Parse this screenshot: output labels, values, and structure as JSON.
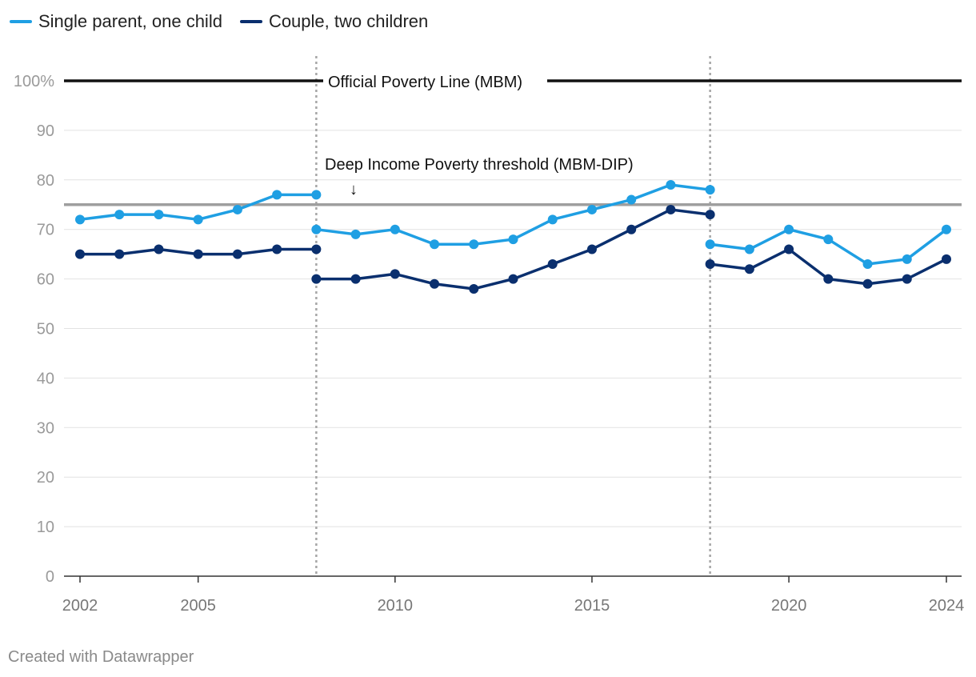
{
  "chart_data": {
    "type": "line",
    "x": [
      2002,
      2003,
      2004,
      2005,
      2006,
      2007,
      2008,
      2009,
      2010,
      2011,
      2012,
      2013,
      2014,
      2015,
      2016,
      2017,
      2018,
      2019,
      2020,
      2021,
      2022,
      2023,
      2024
    ],
    "series": [
      {
        "name": "Single parent, one child",
        "color": "#1f9fe3",
        "segments": [
          {
            "x": [
              2002,
              2003,
              2004,
              2005,
              2006,
              2007,
              2008
            ],
            "values": [
              72,
              73,
              73,
              72,
              74,
              77,
              77
            ]
          },
          {
            "x": [
              2008,
              2009,
              2010,
              2011,
              2012,
              2013,
              2014,
              2015,
              2016,
              2017,
              2018
            ],
            "values": [
              70,
              69,
              70,
              67,
              67,
              68,
              72,
              74,
              76,
              79,
              78
            ]
          },
          {
            "x": [
              2018,
              2019,
              2020,
              2021,
              2022,
              2023,
              2024
            ],
            "values": [
              67,
              66,
              70,
              68,
              63,
              64,
              70
            ]
          }
        ]
      },
      {
        "name": "Couple, two children",
        "color": "#0a2f6e",
        "segments": [
          {
            "x": [
              2002,
              2003,
              2004,
              2005,
              2006,
              2007,
              2008
            ],
            "values": [
              65,
              65,
              66,
              65,
              65,
              66,
              66
            ]
          },
          {
            "x": [
              2008,
              2009,
              2010,
              2011,
              2012,
              2013,
              2014,
              2015,
              2016,
              2017,
              2018
            ],
            "values": [
              60,
              60,
              61,
              59,
              58,
              60,
              63,
              66,
              70,
              74,
              73
            ]
          },
          {
            "x": [
              2018,
              2019,
              2020,
              2021,
              2022,
              2023,
              2024
            ],
            "values": [
              63,
              62,
              66,
              60,
              59,
              60,
              64
            ]
          }
        ]
      }
    ],
    "yticks": [
      0,
      10,
      20,
      30,
      40,
      50,
      60,
      70,
      80,
      90,
      100
    ],
    "ytick_labels": [
      "0",
      "10",
      "20",
      "30",
      "40",
      "50",
      "60",
      "70",
      "80",
      "90",
      "100%"
    ],
    "xticks": [
      2002,
      2005,
      2010,
      2015,
      2020,
      2024
    ],
    "xtick_labels": [
      "2002",
      "2005",
      "2010",
      "2015",
      "2020",
      "2024"
    ],
    "ylim": [
      0,
      100
    ],
    "xlim": [
      2002,
      2024
    ],
    "grid": true,
    "legend_position": "top-left",
    "reference_lines": [
      {
        "value": 100,
        "label": "Official Poverty Line (MBM)",
        "color": "#111111"
      },
      {
        "value": 75,
        "label": "Deep Income Poverty threshold (MBM-DIP)",
        "arrow": "↓",
        "color": "#9e9e9e"
      }
    ],
    "vertical_markers": [
      2008,
      2018
    ]
  },
  "credit": "Created with Datawrapper"
}
